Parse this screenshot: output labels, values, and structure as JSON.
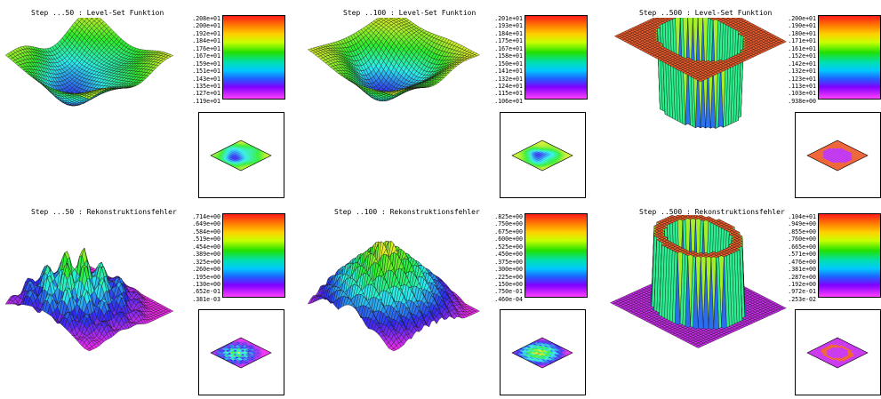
{
  "panels": [
    {
      "title": "Step ...50 : Level-Set Funktion",
      "scale": [
        ".208e+01",
        ".200e+01",
        ".192e+01",
        ".184e+01",
        ".176e+01",
        ".167e+01",
        ".159e+01",
        ".151e+01",
        ".143e+01",
        ".135e+01",
        ".127e+01",
        ".119e+01"
      ],
      "kind": "smooth"
    },
    {
      "title": "Step ..100 : Level-Set Funktion",
      "scale": [
        ".201e+01",
        ".193e+01",
        ".184e+01",
        ".175e+01",
        ".167e+01",
        ".158e+01",
        ".150e+01",
        ".141e+01",
        ".132e+01",
        ".124e+01",
        ".115e+01",
        ".106e+01"
      ],
      "kind": "smooth2"
    },
    {
      "title": "Step ..500 : Level-Set Funktion",
      "scale": [
        ".200e+01",
        ".190e+01",
        ".180e+01",
        ".171e+01",
        ".161e+01",
        ".152e+01",
        ".142e+01",
        ".132e+01",
        ".123e+01",
        ".113e+01",
        ".103e+01",
        ".938e+00"
      ],
      "kind": "step"
    },
    {
      "title": "Step ...50 : Rekonstruktionsfehler",
      "scale": [
        ".714e+00",
        ".649e+00",
        ".584e+00",
        ".519e+00",
        ".454e+00",
        ".389e+00",
        ".325e+00",
        ".260e+00",
        ".195e+00",
        ".130e+00",
        ".652e-01",
        ".381e-03"
      ],
      "kind": "rough"
    },
    {
      "title": "Step ..100 : Rekonstruktionsfehler",
      "scale": [
        ".825e+00",
        ".750e+00",
        ".675e+00",
        ".600e+00",
        ".525e+00",
        ".450e+00",
        ".375e+00",
        ".300e+00",
        ".225e+00",
        ".150e+00",
        ".750e-01",
        ".460e-04"
      ],
      "kind": "rough2"
    },
    {
      "title": "Step ..500 : Rekonstruktionsfehler",
      "scale": [
        ".104e+01",
        ".949e+00",
        ".855e+00",
        ".760e+00",
        ".665e+00",
        ".571e+00",
        ".476e+00",
        ".381e+00",
        ".287e+00",
        ".192e+00",
        ".972e-01",
        ".253e-02"
      ],
      "kind": "walls"
    }
  ]
}
